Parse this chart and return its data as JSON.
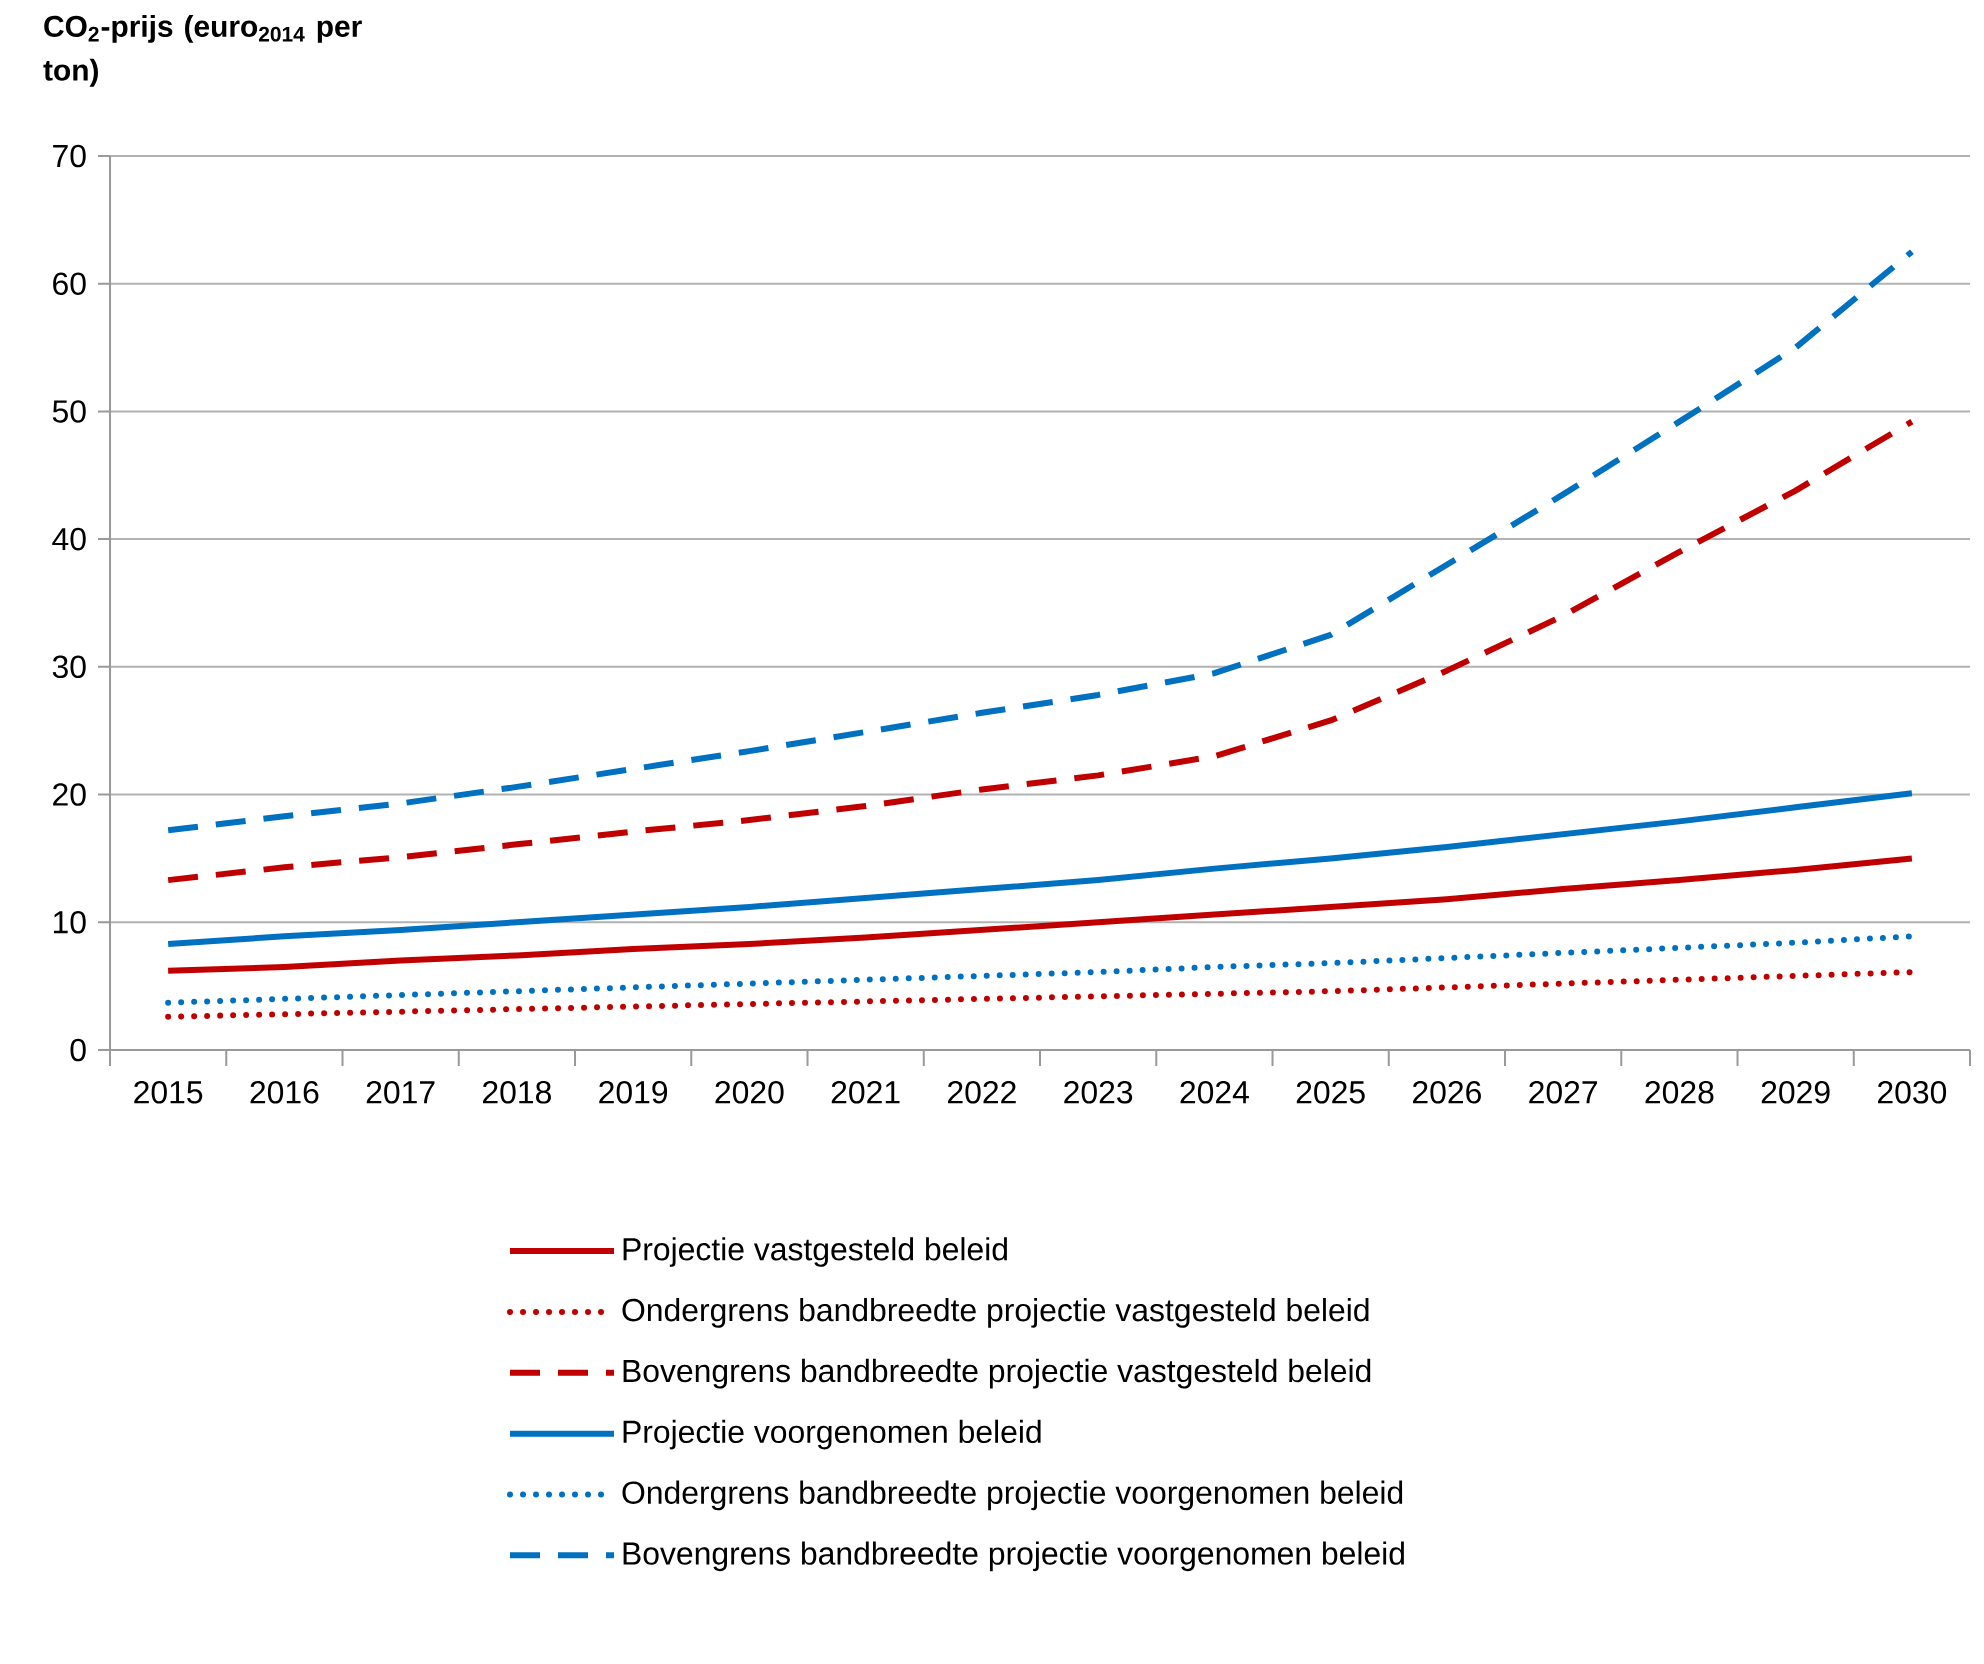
{
  "chart_data": {
    "type": "line",
    "ylabel": "CO$_{2}$-prijs (euro$_{2014}$ per ton)",
    "categories": [
      "2015",
      "2016",
      "2017",
      "2018",
      "2019",
      "2020",
      "2021",
      "2022",
      "2023",
      "2024",
      "2025",
      "2026",
      "2027",
      "2028",
      "2029",
      "2030"
    ],
    "ylim": [
      0,
      70
    ],
    "yticks": [
      0,
      10,
      20,
      30,
      40,
      50,
      60,
      70
    ],
    "grid": "y",
    "legend": "bottom",
    "marker": "none",
    "series": [
      {
        "name": "Projectie vastgesteld beleid",
        "color": "#c00000",
        "line_style": "solid",
        "values": [
          6.2,
          6.5,
          7.0,
          7.4,
          7.9,
          8.3,
          8.8,
          9.4,
          10.0,
          10.6,
          11.2,
          11.8,
          12.6,
          13.3,
          14.1,
          15.0
        ]
      },
      {
        "name": "Ondergrens bandbreedte projectie vastgesteld beleid",
        "color": "#c00000",
        "line_style": "dotted",
        "values": [
          2.6,
          2.8,
          3.0,
          3.2,
          3.4,
          3.6,
          3.8,
          4.0,
          4.2,
          4.4,
          4.6,
          4.9,
          5.2,
          5.5,
          5.8,
          6.1
        ]
      },
      {
        "name": "Bovengrens bandbreedte projectie vastgesteld beleid",
        "color": "#c00000",
        "line_style": "dashed",
        "values": [
          13.3,
          14.3,
          15.1,
          16.1,
          17.1,
          18.0,
          19.1,
          20.4,
          21.5,
          23.0,
          25.8,
          29.7,
          34.0,
          39.0,
          43.8,
          49.2
        ]
      },
      {
        "name": "Projectie voorgenomen beleid",
        "color": "#0070c0",
        "line_style": "solid",
        "values": [
          8.3,
          8.9,
          9.4,
          10.0,
          10.6,
          11.2,
          11.9,
          12.6,
          13.3,
          14.2,
          15.0,
          15.9,
          16.9,
          17.9,
          19.0,
          20.1
        ]
      },
      {
        "name": "Ondergrens bandbreedte projectie voorgenomen beleid",
        "color": "#0070c0",
        "line_style": "dotted",
        "values": [
          3.7,
          4.0,
          4.3,
          4.6,
          4.9,
          5.2,
          5.5,
          5.8,
          6.1,
          6.5,
          6.8,
          7.2,
          7.6,
          8.0,
          8.4,
          8.9
        ]
      },
      {
        "name": "Bovengrens bandbreedte projectie voorgenomen beleid",
        "color": "#0070c0",
        "line_style": "dashed",
        "values": [
          17.2,
          18.3,
          19.3,
          20.6,
          22.0,
          23.4,
          24.9,
          26.4,
          27.8,
          29.5,
          32.5,
          38.0,
          43.5,
          49.2,
          55.0,
          62.5
        ]
      }
    ]
  }
}
